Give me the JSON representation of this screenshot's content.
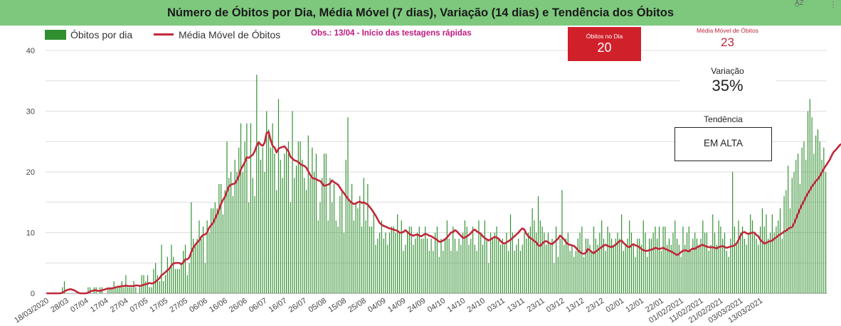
{
  "title": "Número de Óbitos por Dia, Média Móvel (7 dias), Variação (14 dias) e Tendência dos Óbitos",
  "legend": {
    "bar_label": "Óbitos por dia",
    "line_label": "Média Móvel de Óbitos"
  },
  "note": "Obs.: 13/04 - Início das testagens rápidas",
  "cards": {
    "obitos_label": "Óbitos no Dia",
    "obitos_value": "20",
    "media_label": "Média Móvel de Óbitos",
    "media_value": "23",
    "variacao_label": "Variação",
    "variacao_value": "35%",
    "tendencia_label": "Tendência",
    "tendencia_value": "EM ALTA"
  },
  "colors": {
    "bars": "#2f8f2f",
    "line": "#c0283a",
    "header": "#7dc87d",
    "card": "#d0212b",
    "note": "#c2187f"
  },
  "icons": {
    "sort": "sort-az-icon",
    "more": "more-vert-icon"
  },
  "chart_data": {
    "type": "bar",
    "start_date": "2020-03-18",
    "ylim": [
      0,
      40
    ],
    "yticks": [
      0,
      10,
      20,
      30,
      40
    ],
    "grid": true,
    "legend_position": "top-left",
    "xtick_labels": [
      "18/03/2020",
      "28/03",
      "07/04",
      "17/04",
      "27/04",
      "07/05",
      "17/05",
      "27/05",
      "06/06",
      "16/06",
      "26/06",
      "06/07",
      "16/07",
      "26/07",
      "05/08",
      "15/08",
      "25/08",
      "04/09",
      "14/09",
      "24/09",
      "04/10",
      "14/10",
      "24/10",
      "03/11",
      "13/11",
      "23/11",
      "03/12",
      "13/12",
      "23/12",
      "02/01",
      "12/01",
      "22/01",
      "01/02/2021",
      "11/02/2021",
      "21/02/2021",
      "03/03/2021",
      "13/03/2021"
    ],
    "series": [
      {
        "name": "Óbitos por dia",
        "type": "bar",
        "values": [
          0,
          0,
          0,
          0,
          0,
          0,
          0,
          0,
          1,
          2,
          0,
          0,
          0,
          0,
          0,
          0,
          0,
          0,
          0,
          0,
          0,
          1,
          1,
          0,
          1,
          1,
          0,
          1,
          1,
          0,
          0,
          1,
          1,
          1,
          2,
          1,
          1,
          1,
          2,
          1,
          3,
          1,
          1,
          1,
          2,
          1,
          0,
          1,
          3,
          3,
          2,
          3,
          1,
          1,
          4,
          5,
          3,
          2,
          8,
          2,
          3,
          6,
          4,
          8,
          6,
          4,
          4,
          4,
          5,
          7,
          8,
          3,
          5,
          15,
          9,
          8,
          9,
          12,
          9,
          11,
          5,
          12,
          10,
          14,
          14,
          15,
          14,
          18,
          18,
          13,
          17,
          25,
          19,
          20,
          16,
          22,
          20,
          24,
          28,
          20,
          25,
          28,
          15,
          28,
          19,
          16,
          36,
          25,
          22,
          24,
          20,
          30,
          27,
          24,
          28,
          23,
          17,
          32,
          22,
          19,
          23,
          24,
          25,
          15,
          30,
          19,
          21,
          25,
          25,
          22,
          19,
          17,
          26,
          19,
          24,
          20,
          23,
          12,
          15,
          19,
          23,
          23,
          12,
          19,
          15,
          18,
          12,
          11,
          16,
          17,
          10,
          22,
          29,
          15,
          18,
          12,
          15,
          14,
          16,
          11,
          19,
          12,
          18,
          11,
          11,
          13,
          8,
          9,
          10,
          12,
          9,
          10,
          8,
          10,
          11,
          11,
          10,
          13,
          10,
          12,
          7,
          8,
          10,
          11,
          11,
          8,
          9,
          10,
          11,
          9,
          9,
          11,
          9,
          7,
          9,
          7,
          10,
          11,
          6,
          9,
          7,
          9,
          12,
          9,
          7,
          11,
          9,
          7,
          9,
          8,
          10,
          12,
          11,
          8,
          9,
          11,
          8,
          7,
          12,
          10,
          8,
          12,
          9,
          5,
          10,
          9,
          10,
          11,
          9,
          8,
          9,
          8,
          10,
          7,
          13,
          10,
          7,
          8,
          9,
          7,
          8,
          10,
          9,
          10,
          11,
          14,
          12,
          10,
          16,
          12,
          11,
          10,
          8,
          10,
          8,
          9,
          5,
          11,
          6,
          9,
          17,
          8,
          9,
          10,
          7,
          8,
          6,
          7,
          9,
          10,
          11,
          6,
          9,
          9,
          8,
          7,
          11,
          9,
          8,
          10,
          12,
          9,
          7,
          11,
          10,
          9,
          8,
          9,
          10,
          9,
          13,
          7,
          8,
          9,
          12,
          10,
          8,
          6,
          9,
          9,
          8,
          12,
          10,
          6,
          9,
          9,
          10,
          11,
          9,
          11,
          7,
          11,
          11,
          8,
          9,
          8,
          10,
          12,
          9,
          8,
          6,
          11,
          8,
          10,
          11,
          7,
          9,
          10,
          9,
          8,
          9,
          12,
          10,
          10,
          7,
          8,
          13,
          10,
          8,
          12,
          11,
          9,
          10,
          7,
          6,
          9,
          20,
          11,
          8,
          12,
          10,
          11,
          9,
          8,
          10,
          13,
          12,
          10,
          9,
          8,
          11,
          14,
          11,
          13,
          9,
          10,
          13,
          10,
          11,
          12,
          14,
          9,
          16,
          17,
          21,
          14,
          19,
          20,
          22,
          23,
          18,
          24,
          25,
          22,
          30,
          32,
          29,
          23,
          26,
          27,
          25,
          22,
          24,
          20
        ]
      },
      {
        "name": "Média Móvel de Óbitos",
        "type": "line",
        "values": [
          0,
          0,
          0,
          0,
          0,
          0,
          0,
          0,
          0.1,
          0.3,
          0.5,
          0.6,
          0.7,
          0.6,
          0.5,
          0.3,
          0.1,
          0,
          0,
          0,
          0,
          0.1,
          0.3,
          0.4,
          0.5,
          0.5,
          0.4,
          0.4,
          0.5,
          0.6,
          0.7,
          0.8,
          0.8,
          0.8,
          0.9,
          1,
          1.1,
          1.1,
          1.2,
          1.2,
          1.3,
          1.2,
          1.2,
          1.2,
          1.2,
          1.3,
          1.3,
          1.2,
          1.3,
          1.4,
          1.5,
          1.6,
          1.7,
          1.6,
          1.7,
          1.9,
          2.2,
          2.5,
          3,
          3.2,
          3.5,
          3.8,
          4.1,
          4.6,
          4.9,
          5,
          5,
          5,
          4.8,
          5.1,
          5.6,
          5.6,
          5.9,
          6.8,
          7.5,
          8,
          8.4,
          8.7,
          9.3,
          9.6,
          9.7,
          10,
          10.8,
          11.2,
          11.6,
          12.3,
          13,
          13.8,
          14.7,
          15.4,
          15.9,
          16.8,
          17.6,
          17.9,
          18,
          18.1,
          18.6,
          19.3,
          20.4,
          21,
          21.6,
          22.4,
          22.3,
          22.6,
          22.8,
          23.4,
          24.3,
          24.9,
          24.5,
          24.3,
          24.8,
          26.4,
          26.6,
          25.3,
          24.3,
          24,
          23.2,
          23.8,
          24,
          24.1,
          24.2,
          23.8,
          23.4,
          22.5,
          22.2,
          21.9,
          21.8,
          21.6,
          21.3,
          21.1,
          21,
          20.7,
          20.1,
          19.5,
          19,
          18.9,
          18.8,
          18.6,
          18.5,
          18.1,
          17.7,
          17.8,
          17.9,
          18.1,
          18.6,
          18.3,
          18.1,
          17.9,
          17.4,
          16.9,
          16.5,
          16,
          15.6,
          15.2,
          14.9,
          14.7,
          14.8,
          15,
          15.1,
          14.9,
          15,
          14.8,
          14.6,
          14.2,
          13.8,
          13.3,
          12.8,
          12.2,
          11.6,
          11.3,
          11.1,
          11,
          10.8,
          10.7,
          10.6,
          10.5,
          10.4,
          10.3,
          10,
          10,
          10.1,
          10.4,
          10.1,
          9.8,
          9.6,
          9.5,
          9.6,
          9.7,
          9.5,
          9.4,
          9.6,
          9.8,
          9.7,
          9.5,
          9.4,
          9.2,
          9,
          8.8,
          8.5,
          8.5,
          8.7,
          8.9,
          9.2,
          9.6,
          10,
          10.1,
          10.4,
          10.2,
          9.8,
          9.5,
          9.1,
          9.2,
          9.4,
          9.6,
          9.9,
          10.3,
          10.5,
          10.2,
          10,
          9.8,
          9.4,
          9.1,
          8.9,
          8.7,
          8.9,
          9.1,
          9.3,
          9.2,
          9,
          8.6,
          8.3,
          8.2,
          8.4,
          8.6,
          8.8,
          9.1,
          9.4,
          9.7,
          10,
          10.4,
          10.7,
          10.5,
          9.8,
          9.4,
          9.1,
          8.9,
          8.6,
          8.4,
          7.9,
          7.8,
          8.2,
          8.5,
          8.6,
          8.4,
          8.2,
          8.1,
          8.4,
          8.7,
          9,
          9.5,
          9.2,
          8.9,
          8.4,
          8.1,
          8,
          7.9,
          7.8,
          7.5,
          7.1,
          6.8,
          6.6,
          6.5,
          6.7,
          7.3,
          7.1,
          6.8,
          6.6,
          6.9,
          7.1,
          7.4,
          7.6,
          7.9,
          8,
          7.8,
          7.7,
          7.6,
          7.8,
          8,
          8.3,
          8.6,
          8.7,
          8.3,
          8,
          7.7,
          7.6,
          7.9,
          8.1,
          7.9,
          7.8,
          7.6,
          7.3,
          7.1,
          7,
          7,
          7.1,
          7.2,
          7.3,
          7.5,
          7.4,
          7.3,
          7.4,
          7.5,
          7.3,
          7.2,
          7,
          6.9,
          6.7,
          6.5,
          6.3,
          6.5,
          6.8,
          7,
          7.1,
          7,
          6.9,
          7.2,
          7.4,
          7.3,
          7.6,
          7.7,
          7.9,
          8,
          7.8,
          7.7,
          7.6,
          7.6,
          7.6,
          7.5,
          7.4,
          7.6,
          7.7,
          7.8,
          7.6,
          7.5,
          7.6,
          7.7,
          7.8,
          7.9,
          8.2,
          8.8,
          9.5,
          10,
          10.1,
          9.9,
          9.8,
          9.9,
          10,
          10,
          9.6,
          9.4,
          8.8,
          8.5,
          8.2,
          8.3,
          8.5,
          8.6,
          8.7,
          9,
          9.2,
          9.5,
          9.7,
          9.9,
          10.2,
          10.3,
          10.6,
          10.8,
          10.9,
          11.5,
          12.3,
          13.1,
          13.9,
          14.6,
          15.2,
          15.9,
          16.5,
          17,
          17.6,
          18,
          18.5,
          18.8,
          19.3,
          19.9,
          20.5,
          21,
          21.5,
          22,
          22.7,
          23.3,
          23.6,
          24,
          24.4,
          24.6,
          24.9,
          25,
          23.5
        ]
      }
    ]
  }
}
